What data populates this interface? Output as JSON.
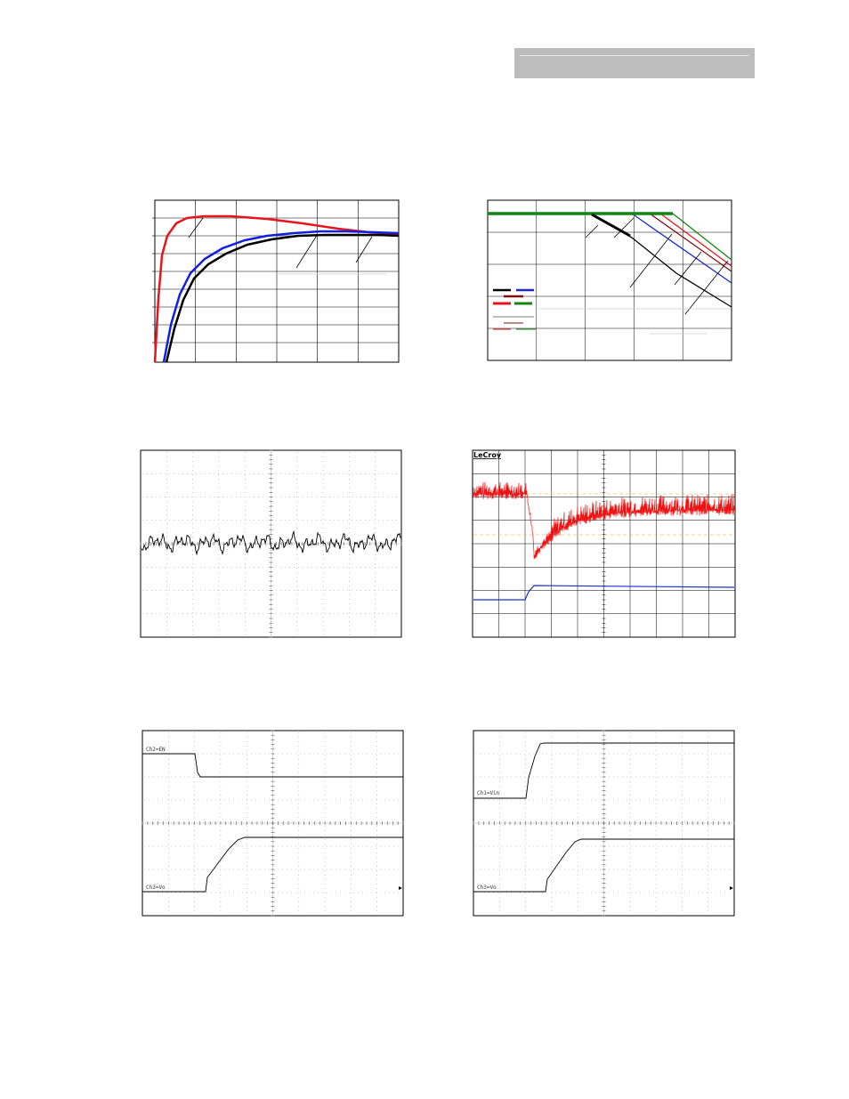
{
  "header": {
    "bar_color": "#bdbdbd"
  },
  "panels": {
    "efficiency": {
      "series_colors": [
        "#e8141b",
        "#1020e0",
        "#000000"
      ]
    },
    "derating": {
      "series_colors": [
        "#000000",
        "#1a2acc",
        "#7a1010",
        "#e8141b",
        "#138513"
      ]
    },
    "ripple": {
      "trace_color": "#000000"
    },
    "transient": {
      "brand": "LeCroy",
      "trace_colors": [
        "#ee1111",
        "#1530c8"
      ]
    },
    "enable_startup": {
      "ch2_label": "Ch2=EN",
      "ch3_label": "Ch3=Vo"
    },
    "vin_startup": {
      "ch1_label": "Ch1=Vin",
      "ch3_label": "Ch3=Vo"
    }
  }
}
